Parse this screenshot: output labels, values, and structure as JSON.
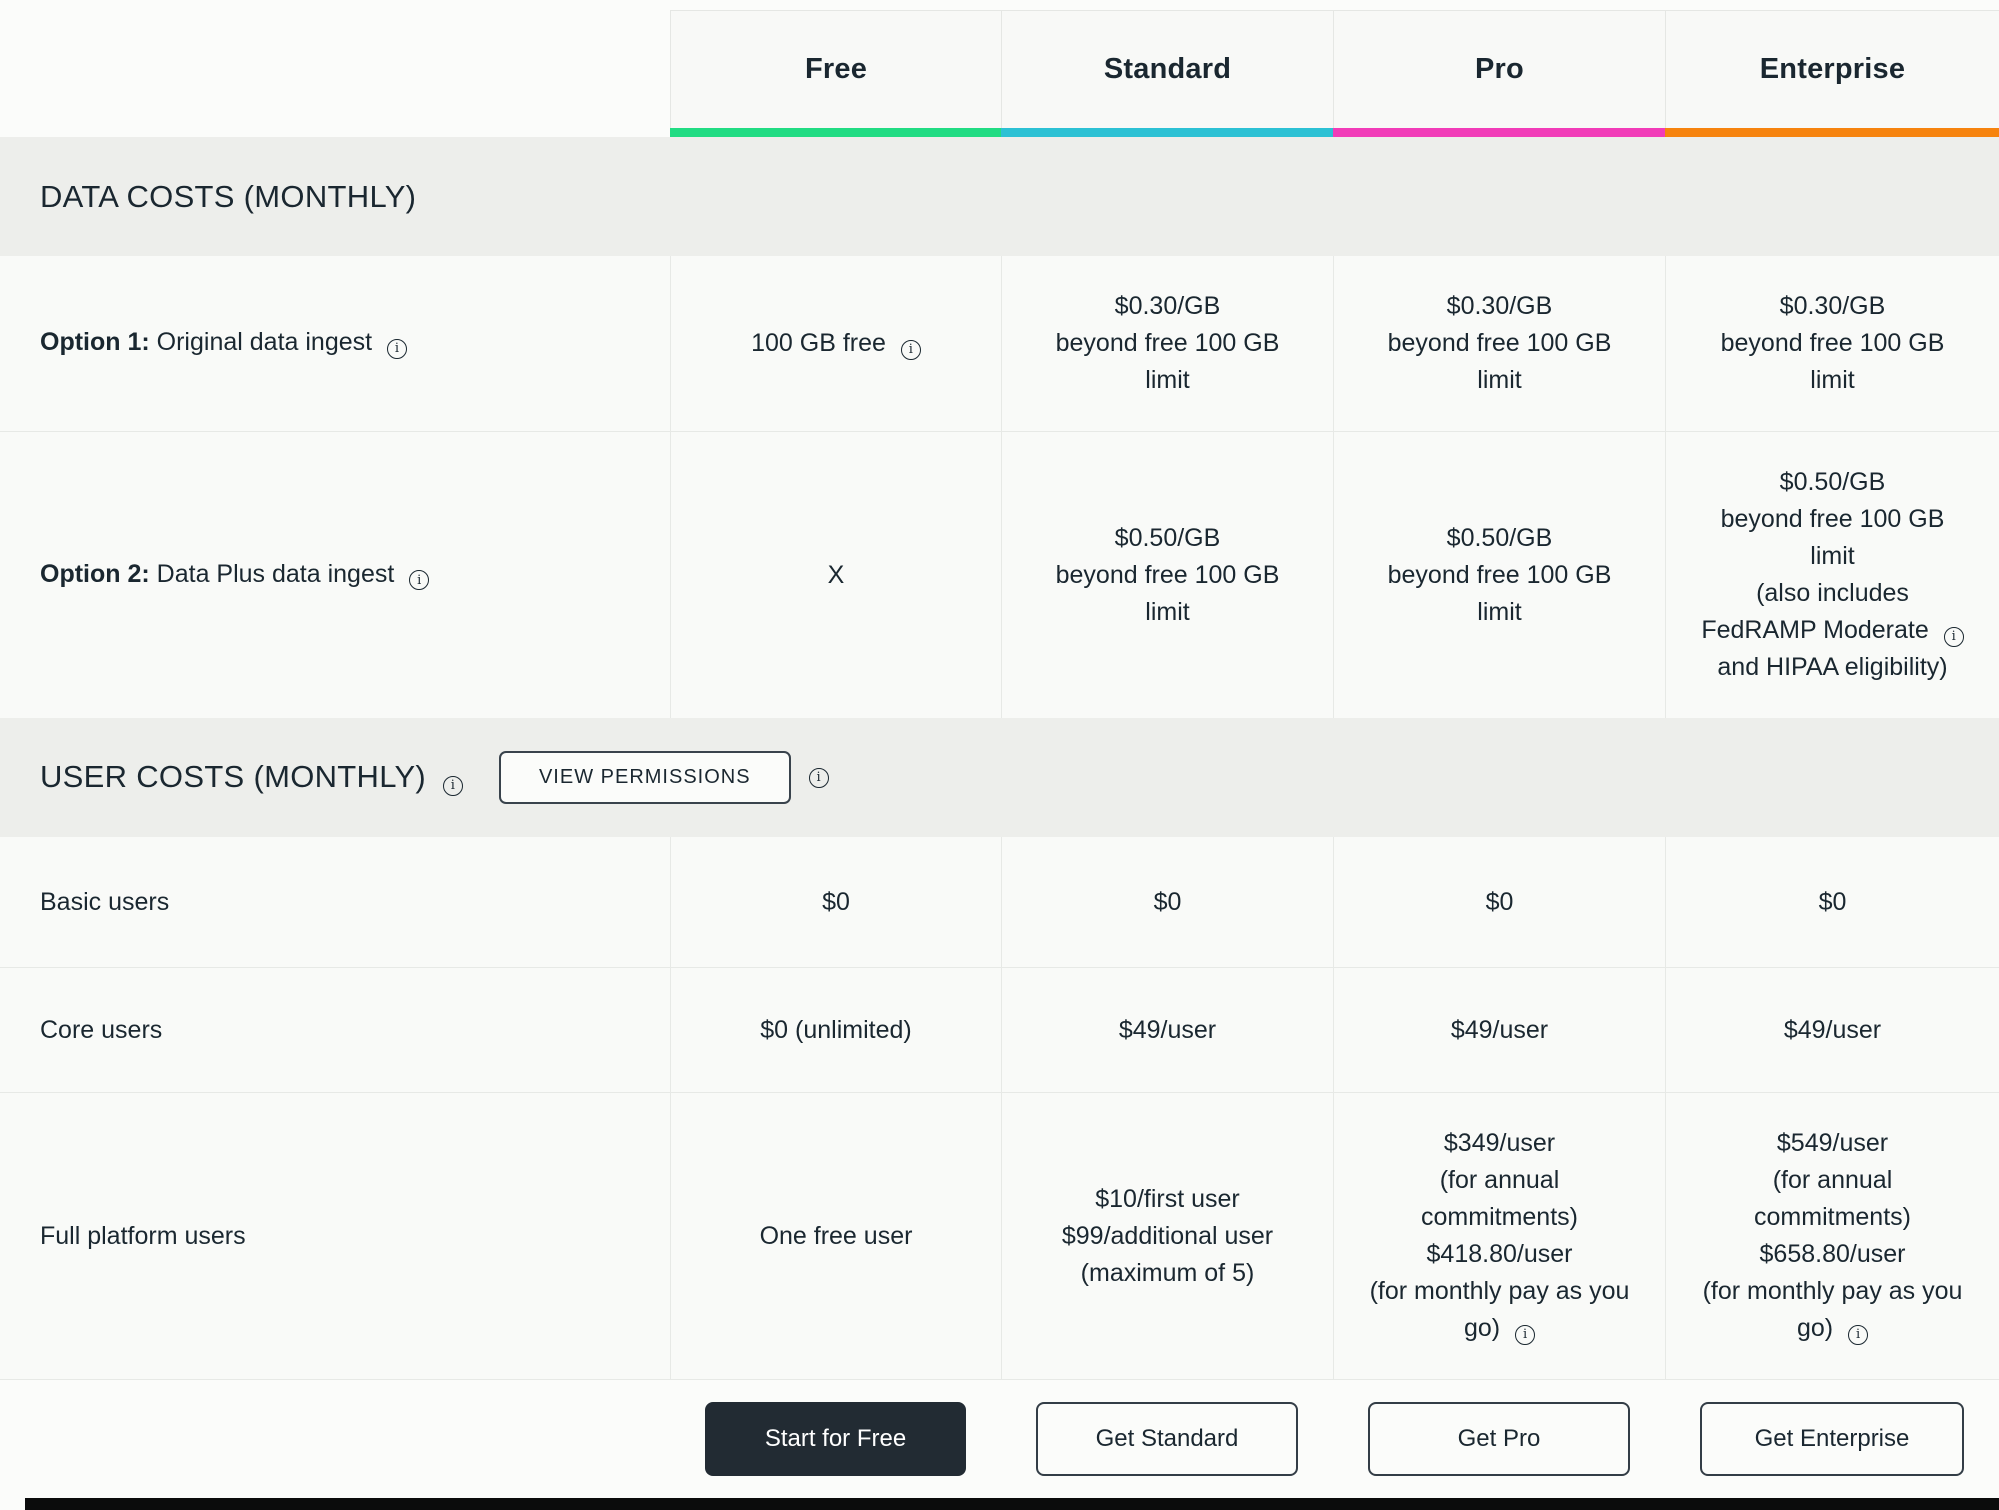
{
  "plans": [
    {
      "name": "Free",
      "accent": "#21DC83",
      "cta": "Start for Free"
    },
    {
      "name": "Standard",
      "accent": "#2CC1D4",
      "cta": "Get Standard"
    },
    {
      "name": "Pro",
      "accent": "#F13CB8",
      "cta": "Get Pro"
    },
    {
      "name": "Enterprise",
      "accent": "#F6830E",
      "cta": "Get Enterprise"
    }
  ],
  "sections": [
    {
      "title": "DATA COSTS (MONTHLY)",
      "rows": [
        {
          "label_bold": "Option 1:",
          "label_rest": " Original data ingest ⓘ",
          "cells": [
            "100 GB free ⓘ",
            "$0.30/GB\nbeyond free 100 GB\nlimit",
            "$0.30/GB\nbeyond free 100 GB\nlimit",
            "$0.30/GB\nbeyond free 100 GB\nlimit"
          ]
        },
        {
          "label_bold": "Option 2:",
          "label_rest": " Data Plus data ingest ⓘ",
          "cells": [
            "X",
            "$0.50/GB\nbeyond free 100 GB\nlimit",
            "$0.50/GB\nbeyond free 100 GB\nlimit",
            "$0.50/GB\nbeyond free 100 GB\nlimit\n(also includes\nFedRAMP Moderate ⓘ\nand HIPAA eligibility)"
          ]
        }
      ]
    },
    {
      "title": "USER COSTS (MONTHLY) ⓘ",
      "permissions_button": "VIEW PERMISSIONS",
      "rows": [
        {
          "label_bold": "",
          "label_rest": "Basic users",
          "cells": [
            "$0",
            "$0",
            "$0",
            "$0"
          ]
        },
        {
          "label_bold": "",
          "label_rest": "Core users",
          "cells": [
            "$0 (unlimited)",
            "$49/user",
            "$49/user",
            "$49/user"
          ]
        },
        {
          "label_bold": "",
          "label_rest": "Full platform users",
          "cells": [
            "One free user",
            "$10/first user\n$99/additional user\n(maximum of 5)",
            "$349/user\n(for annual\ncommitments)\n$418.80/user\n(for monthly pay as you\ngo) ⓘ",
            "$549/user\n(for annual\ncommitments)\n$658.80/user\n(for monthly pay as you\ngo) ⓘ"
          ]
        }
      ]
    }
  ]
}
